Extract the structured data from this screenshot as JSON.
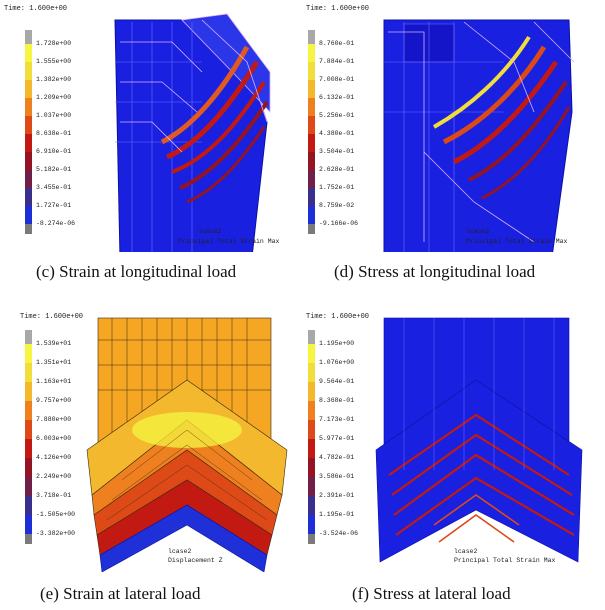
{
  "panels": [
    {
      "time": "Time:  1.600e+00",
      "legend": [
        "1.728e+00",
        "1.555e+00",
        "1.382e+00",
        "1.209e+00",
        "1.037e+00",
        "8.638e-01",
        "6.910e-01",
        "5.182e-01",
        "3.455e-01",
        "1.727e-01",
        "-8.274e-06"
      ],
      "footer_case": "lcase2",
      "footer_title": "Principal Total Strain Max",
      "caption": "(c) Strain at longitudinal load"
    },
    {
      "time": "Time:  1.600e+00",
      "legend": [
        "8.760e-01",
        "7.884e-01",
        "7.008e-01",
        "6.132e-01",
        "5.256e-01",
        "4.380e-01",
        "3.504e-01",
        "2.628e-01",
        "1.752e-01",
        "8.759e-02",
        "-9.166e-06"
      ],
      "footer_case": "lcase2",
      "footer_title": "Principal Total Strain Max",
      "caption": "(d) Stress at longitudinal load"
    },
    {
      "time": "Time:  1.600e+00",
      "legend": [
        "1.539e+01",
        "1.351e+01",
        "1.163e+01",
        "9.757e+00",
        "7.880e+00",
        "6.003e+00",
        "4.126e+00",
        "2.249e+00",
        "3.718e-01",
        "-1.505e+00",
        "-3.382e+00"
      ],
      "footer_case": "lcase2",
      "footer_title": "Displacement Z",
      "caption": "(e) Strain at lateral load"
    },
    {
      "time": "Time:  1.600e+00",
      "legend": [
        "1.195e+00",
        "1.076e+00",
        "9.564e-01",
        "8.368e-01",
        "7.173e-01",
        "5.977e-01",
        "4.782e-01",
        "3.586e-01",
        "2.391e-01",
        "1.195e-01",
        "-3.524e-06"
      ],
      "footer_case": "lcase2",
      "footer_title": "Principal Total Strain Max",
      "caption": "(f) Stress at lateral load"
    }
  ],
  "legend_colors": [
    "#a8a8a8",
    "#f5f542",
    "#f2de3a",
    "#f3b82e",
    "#ee8020",
    "#dd4a18",
    "#c21a12",
    "#941424",
    "#702048",
    "#3a2f8c",
    "#1d2fd6",
    "#1414c8",
    "#7a7a7a"
  ]
}
